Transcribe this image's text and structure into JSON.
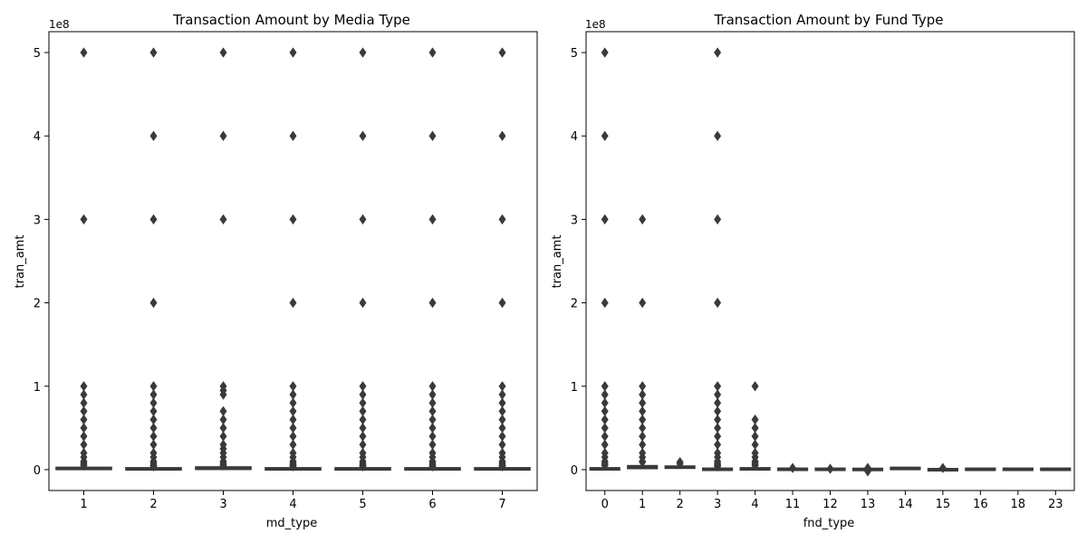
{
  "chart_data": [
    {
      "type": "box",
      "title": "Transaction Amount by Media Type",
      "xlabel": "md_type",
      "ylabel": "tran_amt",
      "scale_label": "1e8",
      "y_scale": 100000000,
      "ylim": [
        -0.25,
        5.25
      ],
      "yticks": [
        0,
        1,
        2,
        3,
        4,
        5
      ],
      "categories": [
        "1",
        "2",
        "3",
        "4",
        "5",
        "6",
        "7"
      ],
      "box_color": "#3a3a3a",
      "boxes": [
        {
          "x": "1",
          "q1": 0.0,
          "median": 0.005,
          "q3": 0.02,
          "outliers": [
            5,
            3,
            1,
            0.9,
            0.8,
            0.7,
            0.6,
            0.5,
            0.4,
            0.3,
            0.2,
            0.15,
            0.1,
            0.08,
            0.06,
            0.05
          ]
        },
        {
          "x": "2",
          "q1": 0.0,
          "median": 0.005,
          "q3": 0.015,
          "outliers": [
            5,
            4,
            3,
            2,
            1,
            0.9,
            0.8,
            0.7,
            0.6,
            0.5,
            0.4,
            0.3,
            0.2,
            0.15,
            0.1,
            0.08,
            0.06,
            0.05,
            0.04
          ]
        },
        {
          "x": "3",
          "q1": 0.0,
          "median": 0.008,
          "q3": 0.025,
          "outliers": [
            5,
            4,
            3,
            1,
            0.95,
            0.9,
            0.7,
            0.6,
            0.5,
            0.4,
            0.3,
            0.25,
            0.2,
            0.15,
            0.1,
            0.08,
            0.06,
            0.05
          ]
        },
        {
          "x": "4",
          "q1": 0.0,
          "median": 0.005,
          "q3": 0.015,
          "outliers": [
            5,
            4,
            3,
            2,
            1,
            0.9,
            0.8,
            0.7,
            0.6,
            0.5,
            0.4,
            0.3,
            0.2,
            0.15,
            0.1,
            0.08,
            0.06,
            0.05,
            0.04
          ]
        },
        {
          "x": "5",
          "q1": 0.0,
          "median": 0.005,
          "q3": 0.015,
          "outliers": [
            5,
            4,
            3,
            2,
            1,
            0.9,
            0.8,
            0.7,
            0.6,
            0.5,
            0.4,
            0.3,
            0.2,
            0.15,
            0.1,
            0.08,
            0.06,
            0.05,
            0.04
          ]
        },
        {
          "x": "6",
          "q1": 0.0,
          "median": 0.005,
          "q3": 0.015,
          "outliers": [
            5,
            4,
            3,
            2,
            1,
            0.9,
            0.8,
            0.7,
            0.6,
            0.5,
            0.4,
            0.3,
            0.2,
            0.15,
            0.1,
            0.08,
            0.06,
            0.05,
            0.04
          ]
        },
        {
          "x": "7",
          "q1": 0.0,
          "median": 0.005,
          "q3": 0.015,
          "outliers": [
            5,
            4,
            3,
            2,
            1,
            0.9,
            0.8,
            0.7,
            0.6,
            0.5,
            0.4,
            0.3,
            0.2,
            0.15,
            0.1,
            0.08,
            0.06,
            0.05,
            0.04
          ]
        }
      ]
    },
    {
      "type": "box",
      "title": "Transaction Amount by Fund Type",
      "xlabel": "fnd_type",
      "ylabel": "tran_amt",
      "scale_label": "1e8",
      "y_scale": 100000000,
      "ylim": [
        -0.25,
        5.25
      ],
      "yticks": [
        0,
        1,
        2,
        3,
        4,
        5
      ],
      "categories": [
        "0",
        "1",
        "2",
        "3",
        "4",
        "11",
        "12",
        "13",
        "14",
        "15",
        "16",
        "18",
        "23"
      ],
      "box_color": "#3a3a3a",
      "boxes": [
        {
          "x": "0",
          "q1": 0.0,
          "median": 0.005,
          "q3": 0.015,
          "outliers": [
            5,
            4,
            3,
            2,
            1,
            0.9,
            0.8,
            0.7,
            0.6,
            0.5,
            0.4,
            0.3,
            0.2,
            0.15,
            0.1,
            0.08,
            0.06,
            0.05
          ]
        },
        {
          "x": "1",
          "q1": 0.01,
          "median": 0.02,
          "q3": 0.04,
          "outliers": [
            3,
            2,
            1,
            0.9,
            0.8,
            0.7,
            0.6,
            0.5,
            0.4,
            0.3,
            0.2,
            0.15,
            0.1,
            0.09
          ]
        },
        {
          "x": "2",
          "q1": 0.015,
          "median": 0.025,
          "q3": 0.035,
          "outliers": [
            0.09,
            0.07
          ]
        },
        {
          "x": "3",
          "q1": 0.0,
          "median": 0.005,
          "q3": 0.01,
          "outliers": [
            5,
            4,
            3,
            2,
            1,
            0.9,
            0.8,
            0.7,
            0.6,
            0.5,
            0.4,
            0.3,
            0.2,
            0.15,
            0.1,
            0.08,
            0.06,
            0.05,
            0.04
          ]
        },
        {
          "x": "4",
          "q1": 0.0,
          "median": 0.005,
          "q3": 0.015,
          "outliers": [
            1,
            0.6,
            0.5,
            0.4,
            0.3,
            0.2,
            0.15,
            0.1,
            0.08,
            0.06,
            0.05
          ]
        },
        {
          "x": "11",
          "q1": 0.0,
          "median": 0.005,
          "q3": 0.01,
          "outliers": [
            0.02
          ]
        },
        {
          "x": "12",
          "q1": 0.0,
          "median": 0.005,
          "q3": 0.01,
          "outliers": [
            0.01
          ]
        },
        {
          "x": "13",
          "q1": 0.0,
          "median": 0.003,
          "q3": 0.008,
          "outliers": [
            -0.02,
            0.02
          ]
        },
        {
          "x": "14",
          "q1": 0.01,
          "median": 0.015,
          "q3": 0.02,
          "outliers": []
        },
        {
          "x": "15",
          "q1": -0.005,
          "median": 0.0,
          "q3": 0.005,
          "outliers": [
            0.02
          ]
        },
        {
          "x": "16",
          "q1": 0.0,
          "median": 0.005,
          "q3": 0.01,
          "outliers": []
        },
        {
          "x": "18",
          "q1": 0.0,
          "median": 0.005,
          "q3": 0.01,
          "outliers": []
        },
        {
          "x": "23",
          "q1": 0.0,
          "median": 0.005,
          "q3": 0.01,
          "outliers": []
        }
      ]
    }
  ]
}
